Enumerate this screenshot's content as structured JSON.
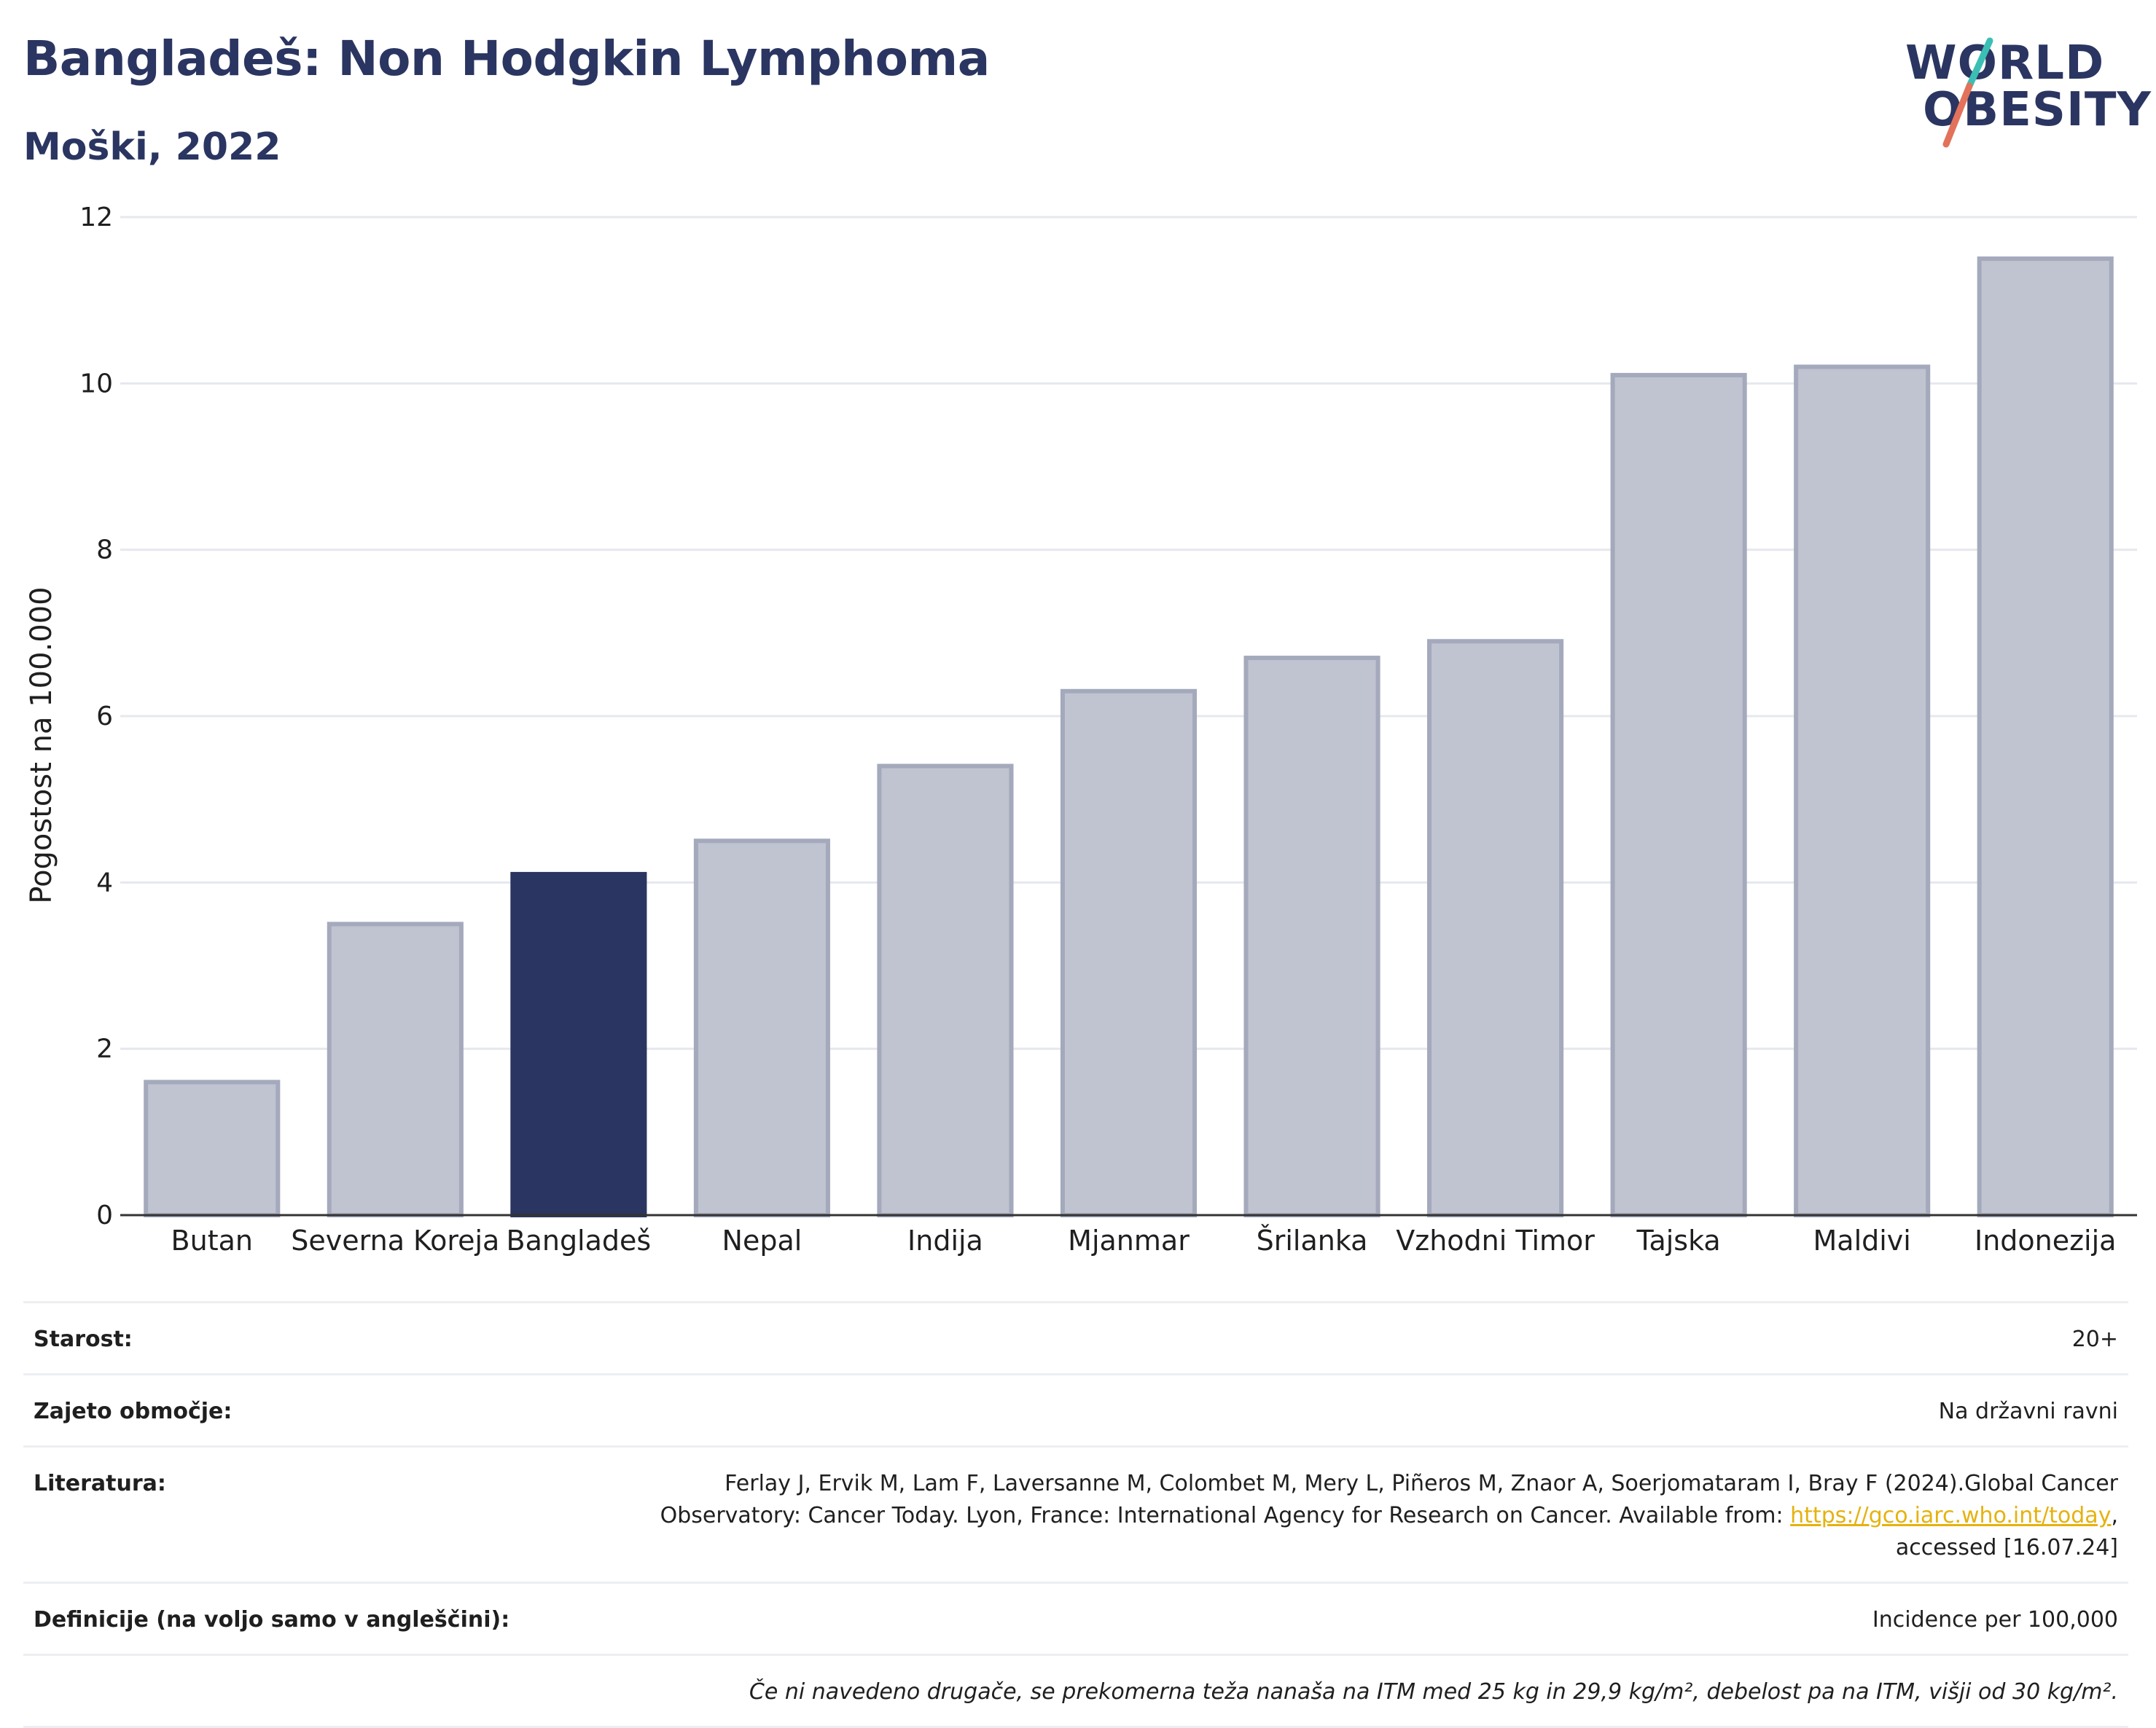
{
  "header": {
    "title": "Bangladeš: Non Hodgkin Lymphoma",
    "subtitle": "Moški, 2022"
  },
  "logo": {
    "line1": "WORLD",
    "line2": "OBESITY",
    "colors": {
      "text": "#2a3561",
      "slash_top": "#3bbfb5",
      "slash_bottom": "#e2725b"
    }
  },
  "chart_data": {
    "type": "bar",
    "ylabel": "Pogostost na 100.000",
    "xlabel": "",
    "ylim": [
      0,
      12
    ],
    "yticks": [
      0,
      2,
      4,
      6,
      8,
      10,
      12
    ],
    "grid": true,
    "categories": [
      "Butan",
      "Severna Koreja",
      "Bangladeš",
      "Nepal",
      "Indija",
      "Mjanmar",
      "Šrilanka",
      "Vzhodni Timor",
      "Tajska",
      "Maldivi",
      "Indonezija"
    ],
    "values": [
      1.6,
      3.5,
      4.1,
      4.5,
      5.4,
      6.3,
      6.7,
      6.9,
      10.1,
      10.2,
      11.5
    ],
    "highlight": "Bangladeš",
    "colors": {
      "bar": "#c0c3d0",
      "bar_border": "#a4a9bc",
      "highlight": "#2a3561",
      "grid": "#e6e8ee",
      "axis": "#333333"
    }
  },
  "footer": {
    "rows": [
      {
        "label": "Starost:",
        "value": "20+"
      },
      {
        "label": "Zajeto območje:",
        "value": "Na državni ravni"
      },
      {
        "label": "Literatura:",
        "value_pre": "Ferlay J, Ervik M, Lam F, Laversanne M, Colombet M, Mery L, Piñeros M, Znaor A, Soerjomataram I, Bray F (2024).Global Cancer Observatory: Cancer Today. Lyon, France: International Agency for Research on Cancer. Available from: ",
        "link": "https://gco.iarc.who.int/today",
        "value_post": ", accessed [16.07.24]"
      },
      {
        "label": "Definicije (na voljo samo v angleščini):",
        "value": "Incidence per 100,000"
      }
    ],
    "note": "Če ni navedeno drugače, se prekomerna teža nanaša na ITM med 25 kg in 29,9 kg/m², debelost pa na ITM, višji od 30 kg/m²."
  }
}
